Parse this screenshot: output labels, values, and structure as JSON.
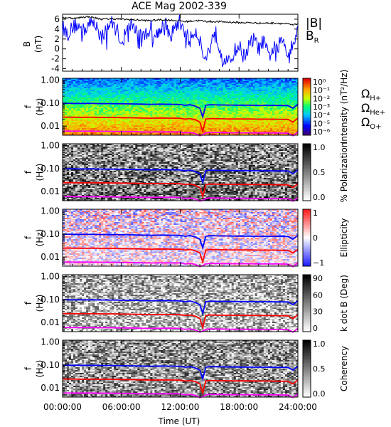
{
  "title": "ACE Mag 2002-339",
  "colors": {
    "h": "#0000ff",
    "he": "#ff0000",
    "o": "#ff00ff",
    "br": "#0000ff",
    "bmag": "#000000"
  },
  "labels": {
    "b_axis": "B",
    "b_unit": "(nT)",
    "f_axis": "f",
    "f_unit": "(Hz)",
    "x_axis": "Time (UT)",
    "bmag_legend": "|B|",
    "br_legend": "B",
    "br_sub": "R",
    "omega_h": "Ω",
    "omega_h_sub": "H+",
    "omega_he": "Ω",
    "omega_he_sub": "He+",
    "omega_o": "Ω",
    "omega_o_sub": "O+"
  },
  "x_ticks": [
    "00:00:00",
    "06:00:00",
    "12:00:00",
    "18:00:00",
    "24:00:00"
  ],
  "f_ticks": [
    "1.00",
    "0.10",
    "0.01"
  ],
  "chart_data": {
    "type": "line",
    "title": "ACE Mag 2002-339",
    "xlabel": "Time (UT)",
    "xlim": [
      0,
      24
    ],
    "panels": [
      {
        "id": "field",
        "type": "line",
        "ylabel": "B (nT)",
        "ylim": [
          -4.5,
          7
        ],
        "yticks": [
          "6",
          "4",
          "2",
          "0",
          "-2",
          "-4"
        ],
        "series": [
          {
            "name": "|B|",
            "x": [
              0,
              0.5,
              1,
              1.5,
              2,
              2.5,
              3,
              4,
              5,
              6,
              7,
              8,
              9,
              10,
              11,
              12,
              12.5,
              13,
              13.5,
              14,
              14.5,
              15,
              16,
              17,
              18,
              19,
              20,
              21,
              22,
              23,
              23.5,
              24
            ],
            "y": [
              6.3,
              6.3,
              6.2,
              6.2,
              6.4,
              6.5,
              6.4,
              6.0,
              6.1,
              6.0,
              5.9,
              5.8,
              5.7,
              5.9,
              5.8,
              5.7,
              5.5,
              5.6,
              5.7,
              5.7,
              5.6,
              5.5,
              5.5,
              5.4,
              5.3,
              5.3,
              5.2,
              5.2,
              5.2,
              5.0,
              4.8,
              5.1
            ]
          },
          {
            "name": "B_R",
            "x": [
              0,
              0.5,
              1,
              1.5,
              2,
              2.5,
              3,
              3.5,
              4,
              4.5,
              5,
              5.5,
              6,
              6.5,
              7,
              7.5,
              8,
              8.5,
              9,
              9.5,
              10,
              10.5,
              11,
              11.5,
              12,
              12.5,
              13,
              13.5,
              14,
              14.5,
              15,
              15.5,
              16,
              16.5,
              17,
              17.5,
              18,
              18.5,
              19,
              19.5,
              20,
              20.5,
              21,
              21.5,
              22,
              22.5,
              23,
              23.5,
              24
            ],
            "y": [
              4.5,
              3.0,
              4.2,
              5.0,
              3.5,
              4.5,
              5.2,
              4.8,
              2.0,
              4.5,
              5.3,
              4.0,
              1.5,
              3.5,
              5.0,
              4.0,
              2.5,
              3.0,
              4.5,
              2.5,
              4.5,
              5.0,
              2.5,
              4.5,
              5.5,
              3.5,
              1.5,
              4.0,
              2.0,
              -2.5,
              0.0,
              4.0,
              0.5,
              -2.0,
              -3.0,
              -0.5,
              0.5,
              -1.5,
              0.5,
              2.0,
              0.0,
              1.5,
              -1.5,
              0.0,
              0.5,
              2.0,
              -1.0,
              1.5,
              3.5
            ]
          }
        ]
      },
      {
        "id": "intensity",
        "type": "heatmap",
        "ylabel": "f (Hz)",
        "yscale": "log",
        "ylim": [
          0.004,
          1.2
        ],
        "colorbar_label": "Intensity (nT²/Hz)",
        "colorbar_ticks": [
          "10⁰",
          "10⁻¹",
          "10⁻²",
          "10⁻³",
          "10⁻⁴",
          "10⁻⁵",
          "10⁻⁶"
        ]
      },
      {
        "id": "polarization",
        "type": "heatmap",
        "ylabel": "f (Hz)",
        "yscale": "log",
        "ylim": [
          0.004,
          1.2
        ],
        "colorbar_label": "% Polarization",
        "colorbar_ticks": [
          "1.0",
          "0.5",
          "0.0"
        ]
      },
      {
        "id": "ellipticity",
        "type": "heatmap",
        "ylabel": "f (Hz)",
        "yscale": "log",
        "ylim": [
          0.004,
          1.2
        ],
        "colorbar_label": "Ellipticity",
        "colorbar_ticks": [
          "1",
          "0",
          "−1"
        ]
      },
      {
        "id": "kdotb",
        "type": "heatmap",
        "ylabel": "f (Hz)",
        "yscale": "log",
        "ylim": [
          0.004,
          1.2
        ],
        "colorbar_label": "k dot B (Deg)",
        "colorbar_ticks": [
          "90",
          "60",
          "30",
          "0"
        ]
      },
      {
        "id": "coherency",
        "type": "heatmap",
        "ylabel": "f (Hz)",
        "yscale": "log",
        "ylim": [
          0.004,
          1.2
        ],
        "colorbar_label": "Coherency",
        "colorbar_ticks": [
          "1.0",
          "0.5",
          "0.0"
        ]
      }
    ],
    "gyrofrequency_overlay": {
      "x": [
        0,
        1,
        2,
        3,
        4,
        5,
        6,
        7,
        8,
        9,
        10,
        11,
        12,
        12.5,
        13,
        13.5,
        14,
        14.3,
        14.6,
        15,
        16,
        17,
        18,
        19,
        20,
        21,
        22,
        23,
        23.5,
        24
      ],
      "series": [
        {
          "name": "Ω_H+",
          "y": [
            0.098,
            0.097,
            0.096,
            0.097,
            0.095,
            0.095,
            0.093,
            0.092,
            0.09,
            0.088,
            0.09,
            0.089,
            0.087,
            0.08,
            0.085,
            0.075,
            0.06,
            0.025,
            0.08,
            0.085,
            0.083,
            0.082,
            0.081,
            0.081,
            0.08,
            0.08,
            0.079,
            0.078,
            0.06,
            0.088
          ]
        },
        {
          "name": "Ω_He+",
          "y": [
            0.0245,
            0.0243,
            0.024,
            0.0243,
            0.0238,
            0.0238,
            0.0233,
            0.023,
            0.0225,
            0.022,
            0.0225,
            0.0222,
            0.0218,
            0.02,
            0.0212,
            0.019,
            0.015,
            0.006,
            0.02,
            0.0212,
            0.0208,
            0.0205,
            0.0203,
            0.0203,
            0.02,
            0.02,
            0.0198,
            0.0195,
            0.015,
            0.022
          ]
        },
        {
          "name": "Ω_O+",
          "y": [
            0.0061,
            0.006,
            0.006,
            0.006,
            0.0059,
            0.0059,
            0.0058,
            0.0058,
            0.0056,
            0.0055,
            0.0056,
            0.0056,
            0.0055,
            0.005,
            0.0053,
            0.0048,
            0.0038,
            0.0042,
            0.005,
            0.0053,
            0.0052,
            0.0051,
            0.0051,
            0.0051,
            0.005,
            0.005,
            0.005,
            0.0049,
            0.0038,
            0.0055
          ]
        }
      ]
    }
  }
}
